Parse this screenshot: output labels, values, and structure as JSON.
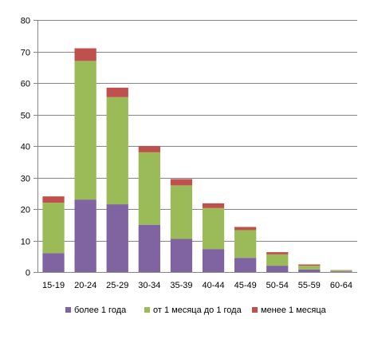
{
  "chart_data": {
    "type": "bar",
    "stacked": true,
    "categories": [
      "15-19",
      "20-24",
      "25-29",
      "30-34",
      "35-39",
      "40-44",
      "45-49",
      "50-54",
      "55-59",
      "60-64"
    ],
    "series": [
      {
        "name": "более 1 года",
        "color": "#8064A2",
        "values": [
          6,
          23,
          21.5,
          15,
          10.5,
          7.3,
          4.5,
          2,
          0.8,
          0.2
        ]
      },
      {
        "name": "от 1 месяца до 1 года",
        "color": "#9BBB59",
        "values": [
          16,
          44,
          34,
          23,
          17,
          13,
          8.8,
          3.6,
          1.2,
          0.3
        ]
      },
      {
        "name": "менее 1 месяца",
        "color": "#C0504D",
        "values": [
          2,
          4,
          3,
          2,
          2,
          1.5,
          1,
          0.7,
          0.4,
          0.1
        ]
      }
    ],
    "yticks": [
      "0",
      "10",
      "20",
      "30",
      "40",
      "50",
      "60",
      "70",
      "80"
    ],
    "ylim": [
      0,
      80
    ],
    "grid": true,
    "legend_position": "bottom",
    "title": "",
    "xlabel": "",
    "ylabel": ""
  }
}
